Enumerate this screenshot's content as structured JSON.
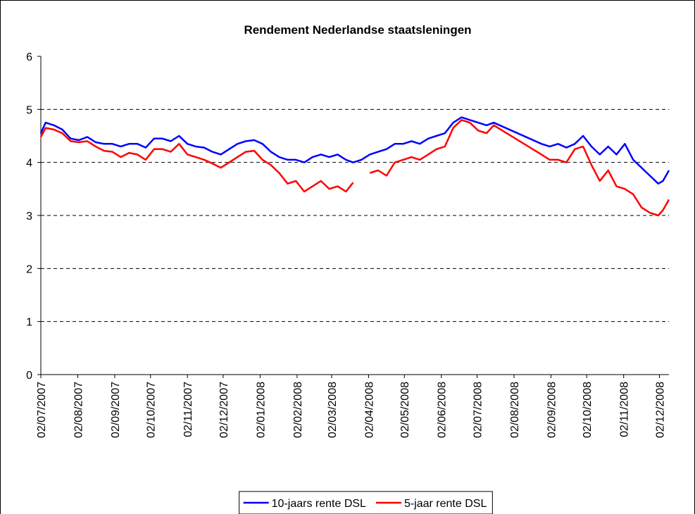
{
  "chart_data": {
    "type": "line",
    "title": "Rendement Nederlandse staatsleningen",
    "x": [
      "02/07/2007",
      "06/07/2007",
      "13/07/2007",
      "20/07/2007",
      "27/07/2007",
      "03/08/2007",
      "10/08/2007",
      "17/08/2007",
      "24/08/2007",
      "31/08/2007",
      "07/09/2007",
      "14/09/2007",
      "21/09/2007",
      "28/09/2007",
      "05/10/2007",
      "12/10/2007",
      "19/10/2007",
      "26/10/2007",
      "02/11/2007",
      "09/11/2007",
      "16/11/2007",
      "23/11/2007",
      "30/11/2007",
      "07/12/2007",
      "14/12/2007",
      "21/12/2007",
      "28/12/2007",
      "04/01/2008",
      "11/01/2008",
      "18/01/2008",
      "25/01/2008",
      "01/02/2008",
      "08/02/2008",
      "15/02/2008",
      "22/02/2008",
      "29/02/2008",
      "07/03/2008",
      "14/03/2008",
      "20/03/2008",
      "27/03/2008",
      "03/04/2008",
      "10/04/2008",
      "17/04/2008",
      "24/04/2008",
      "01/05/2008",
      "08/05/2008",
      "15/05/2008",
      "22/05/2008",
      "29/05/2008",
      "05/06/2008",
      "12/06/2008",
      "19/06/2008",
      "26/06/2008",
      "03/07/2008",
      "10/07/2008",
      "16/07/2008",
      "25/08/2008",
      "01/09/2008",
      "08/09/2008",
      "15/09/2008",
      "22/09/2008",
      "29/09/2008",
      "06/10/2008",
      "13/10/2008",
      "20/10/2008",
      "27/10/2008",
      "03/11/2008",
      "10/11/2008",
      "17/11/2008",
      "24/11/2008",
      "01/12/2008",
      "05/12/2008",
      "10/12/2008"
    ],
    "series": [
      {
        "name": "10-jaars rente DSL",
        "color": "#0000ff",
        "values": [
          4.55,
          4.75,
          4.7,
          4.62,
          4.45,
          4.42,
          4.48,
          4.38,
          4.35,
          4.35,
          4.3,
          4.35,
          4.35,
          4.28,
          4.45,
          4.45,
          4.4,
          4.5,
          4.35,
          4.3,
          4.28,
          4.2,
          4.15,
          4.25,
          4.35,
          4.4,
          4.42,
          4.35,
          4.2,
          4.1,
          4.05,
          4.05,
          4.0,
          4.1,
          4.15,
          4.1,
          4.15,
          4.05,
          4.0,
          4.05,
          4.15,
          4.2,
          4.25,
          4.35,
          4.35,
          4.4,
          4.35,
          4.45,
          4.5,
          4.55,
          4.75,
          4.85,
          4.8,
          4.75,
          4.7,
          4.75,
          4.35,
          4.3,
          4.35,
          4.28,
          4.35,
          4.5,
          4.3,
          4.15,
          4.3,
          4.15,
          4.35,
          4.05,
          3.9,
          3.75,
          3.6,
          3.65,
          3.85
        ]
      },
      {
        "name": "5-jaar rente DSL",
        "color": "#ff0000",
        "values": [
          4.48,
          4.65,
          4.62,
          4.55,
          4.4,
          4.38,
          4.4,
          4.3,
          4.22,
          4.2,
          4.1,
          4.18,
          4.15,
          4.05,
          4.25,
          4.25,
          4.2,
          4.35,
          4.15,
          4.1,
          4.05,
          3.98,
          3.9,
          4.0,
          4.1,
          4.2,
          4.22,
          4.05,
          3.95,
          3.8,
          3.6,
          3.65,
          3.45,
          3.55,
          3.65,
          3.5,
          3.55,
          3.45,
          3.62,
          null,
          3.8,
          3.85,
          3.75,
          4.0,
          4.05,
          4.1,
          4.05,
          4.15,
          4.25,
          4.3,
          4.65,
          4.8,
          4.75,
          4.6,
          4.55,
          4.7,
          4.15,
          4.05,
          4.05,
          4.0,
          4.25,
          4.3,
          3.95,
          3.65,
          3.85,
          3.55,
          3.5,
          3.4,
          3.15,
          3.05,
          3.0,
          3.1,
          3.3
        ]
      }
    ],
    "xlim": [
      "02/07/2007",
      "10/12/2008"
    ],
    "xticks": [
      "02/07/2007",
      "02/08/2007",
      "02/09/2007",
      "02/10/2007",
      "02/11/2007",
      "02/12/2007",
      "02/01/2008",
      "02/02/2008",
      "02/03/2008",
      "02/04/2008",
      "02/05/2008",
      "02/06/2008",
      "02/07/2008",
      "02/08/2008",
      "02/09/2008",
      "02/10/2008",
      "02/11/2008",
      "02/12/2008"
    ],
    "ylim": [
      0,
      6
    ],
    "yticks": [
      0,
      1,
      2,
      3,
      4,
      5,
      6
    ],
    "grid": true,
    "legend": "bottom"
  }
}
